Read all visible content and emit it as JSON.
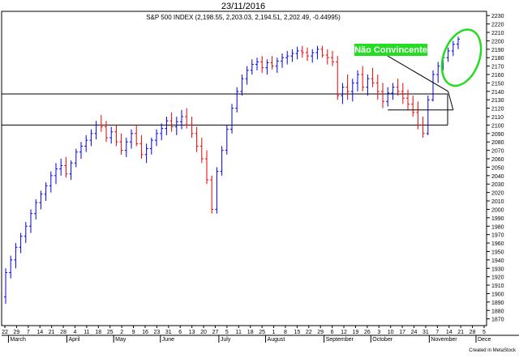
{
  "header": {
    "date": "23/11/2016"
  },
  "footer": {
    "credit": "Created in MetaStock"
  },
  "colors": {
    "up": "#0000ee",
    "down": "#ee0000",
    "annotation_green": "#22dd22",
    "annotation_text": "#ffffff"
  },
  "chart_data": {
    "type": "bar",
    "title": "S&P 500 INDEX (2,198.55, 2,203.03, 2,194.51, 2,202.49, -0.44995)",
    "y_ticks": [
      1870,
      1880,
      1890,
      1900,
      1910,
      1920,
      1930,
      1940,
      1950,
      1960,
      1970,
      1980,
      1990,
      2000,
      2010,
      2020,
      2030,
      2040,
      2050,
      2060,
      2070,
      2080,
      2090,
      2100,
      2110,
      2120,
      2130,
      2140,
      2150,
      2160,
      2170,
      2180,
      2190,
      2200,
      2210,
      2220,
      2230
    ],
    "ylim": [
      1862,
      2235
    ],
    "x_day_labels": [
      "22",
      "29",
      "7",
      "14",
      "21",
      "28",
      "4",
      "11",
      "18",
      "25",
      "2",
      "9",
      "16",
      "23",
      "31",
      "6",
      "13",
      "20",
      "27",
      "5",
      "11",
      "18",
      "25",
      "1",
      "8",
      "15",
      "22",
      "29",
      "6",
      "12",
      "19",
      "26",
      "3",
      "10",
      "17",
      "24",
      "31",
      "7",
      "14",
      "21",
      "28",
      "5"
    ],
    "x_month_labels": [
      "March",
      "April",
      "May",
      "June",
      "July",
      "August",
      "September",
      "October",
      "November",
      "Dece"
    ],
    "horizontal_lines": [
      2137,
      2100
    ],
    "annotation": {
      "text": "Não Convincente"
    },
    "ohlc_bars": [
      [
        1896,
        1930,
        1888,
        1925
      ],
      [
        1925,
        1945,
        1918,
        1940
      ],
      [
        1940,
        1960,
        1930,
        1955
      ],
      [
        1955,
        1972,
        1948,
        1968
      ],
      [
        1968,
        1985,
        1960,
        1980
      ],
      [
        1980,
        2000,
        1972,
        1995
      ],
      [
        1995,
        2012,
        1988,
        2008
      ],
      [
        2008,
        2022,
        2000,
        2018
      ],
      [
        2018,
        2032,
        2010,
        2028
      ],
      [
        2028,
        2045,
        2020,
        2040
      ],
      [
        2040,
        2055,
        2030,
        2048
      ],
      [
        2048,
        2060,
        2040,
        2052
      ],
      [
        2052,
        2062,
        2038,
        2042
      ],
      [
        2042,
        2058,
        2035,
        2055
      ],
      [
        2055,
        2072,
        2050,
        2068
      ],
      [
        2068,
        2080,
        2060,
        2075
      ],
      [
        2075,
        2088,
        2068,
        2082
      ],
      [
        2082,
        2095,
        2075,
        2090
      ],
      [
        2090,
        2105,
        2083,
        2100
      ],
      [
        2100,
        2112,
        2092,
        2098
      ],
      [
        2098,
        2105,
        2080,
        2085
      ],
      [
        2085,
        2098,
        2078,
        2092
      ],
      [
        2092,
        2100,
        2075,
        2080
      ],
      [
        2080,
        2090,
        2065,
        2070
      ],
      [
        2070,
        2085,
        2062,
        2080
      ],
      [
        2080,
        2095,
        2072,
        2090
      ],
      [
        2090,
        2100,
        2075,
        2078
      ],
      [
        2078,
        2088,
        2060,
        2065
      ],
      [
        2065,
        2078,
        2055,
        2072
      ],
      [
        2072,
        2085,
        2065,
        2082
      ],
      [
        2082,
        2095,
        2075,
        2090
      ],
      [
        2090,
        2102,
        2082,
        2096
      ],
      [
        2096,
        2110,
        2088,
        2105
      ],
      [
        2105,
        2115,
        2092,
        2098
      ],
      [
        2098,
        2110,
        2088,
        2104
      ],
      [
        2104,
        2118,
        2095,
        2110
      ],
      [
        2110,
        2120,
        2096,
        2100
      ],
      [
        2100,
        2110,
        2085,
        2090
      ],
      [
        2090,
        2098,
        2068,
        2075
      ],
      [
        2075,
        2085,
        2055,
        2060
      ],
      [
        2060,
        2070,
        2030,
        2035
      ],
      [
        2035,
        2040,
        1995,
        2000
      ],
      [
        2000,
        2050,
        1995,
        2045
      ],
      [
        2045,
        2075,
        2040,
        2070
      ],
      [
        2070,
        2100,
        2065,
        2095
      ],
      [
        2095,
        2125,
        2090,
        2120
      ],
      [
        2120,
        2145,
        2115,
        2140
      ],
      [
        2140,
        2160,
        2135,
        2155
      ],
      [
        2155,
        2170,
        2148,
        2165
      ],
      [
        2165,
        2178,
        2160,
        2172
      ],
      [
        2172,
        2180,
        2165,
        2175
      ],
      [
        2175,
        2182,
        2162,
        2168
      ],
      [
        2168,
        2178,
        2160,
        2174
      ],
      [
        2174,
        2182,
        2166,
        2170
      ],
      [
        2170,
        2180,
        2162,
        2176
      ],
      [
        2176,
        2185,
        2168,
        2180
      ],
      [
        2180,
        2188,
        2172,
        2182
      ],
      [
        2182,
        2190,
        2175,
        2185
      ],
      [
        2185,
        2193,
        2178,
        2188
      ],
      [
        2188,
        2194,
        2180,
        2186
      ],
      [
        2186,
        2192,
        2176,
        2182
      ],
      [
        2182,
        2190,
        2174,
        2186
      ],
      [
        2186,
        2194,
        2178,
        2190
      ],
      [
        2190,
        2194,
        2180,
        2183
      ],
      [
        2183,
        2190,
        2172,
        2180
      ],
      [
        2180,
        2188,
        2170,
        2175
      ],
      [
        2175,
        2182,
        2130,
        2135
      ],
      [
        2135,
        2150,
        2125,
        2145
      ],
      [
        2145,
        2160,
        2130,
        2140
      ],
      [
        2140,
        2155,
        2128,
        2150
      ],
      [
        2150,
        2165,
        2140,
        2160
      ],
      [
        2160,
        2170,
        2140,
        2145
      ],
      [
        2145,
        2160,
        2135,
        2155
      ],
      [
        2155,
        2168,
        2145,
        2150
      ],
      [
        2150,
        2160,
        2130,
        2140
      ],
      [
        2140,
        2150,
        2120,
        2128
      ],
      [
        2128,
        2145,
        2122,
        2138
      ],
      [
        2138,
        2150,
        2130,
        2145
      ],
      [
        2145,
        2155,
        2135,
        2140
      ],
      [
        2140,
        2150,
        2125,
        2132
      ],
      [
        2132,
        2142,
        2118,
        2125
      ],
      [
        2125,
        2135,
        2110,
        2115
      ],
      [
        2115,
        2128,
        2095,
        2100
      ],
      [
        2100,
        2110,
        2085,
        2090
      ],
      [
        2090,
        2135,
        2088,
        2130
      ],
      [
        2130,
        2165,
        2128,
        2160
      ],
      [
        2160,
        2175,
        2150,
        2170
      ],
      [
        2170,
        2185,
        2165,
        2180
      ],
      [
        2180,
        2192,
        2175,
        2188
      ],
      [
        2188,
        2200,
        2182,
        2196
      ],
      [
        2196,
        2205,
        2190,
        2202
      ]
    ]
  }
}
